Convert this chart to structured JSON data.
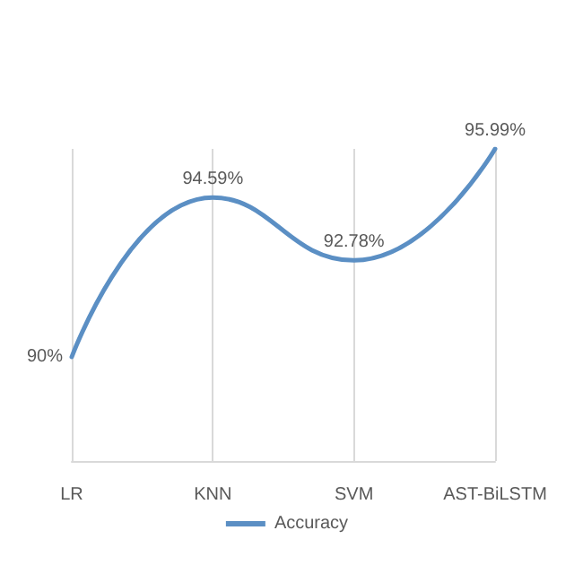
{
  "chart_data": {
    "type": "line",
    "categories": [
      "LR",
      "KNN",
      "SVM",
      "AST-BiLSTM"
    ],
    "series": [
      {
        "name": "Accuracy",
        "color": "#5b8fc4",
        "values": [
          90,
          94.59,
          92.78,
          95.99
        ],
        "value_labels": [
          "90%",
          "94.59%",
          "92.78%",
          "95.99%"
        ]
      }
    ],
    "grid": "x",
    "legend": "bottom",
    "marker": "none",
    "line_style": "solid"
  }
}
